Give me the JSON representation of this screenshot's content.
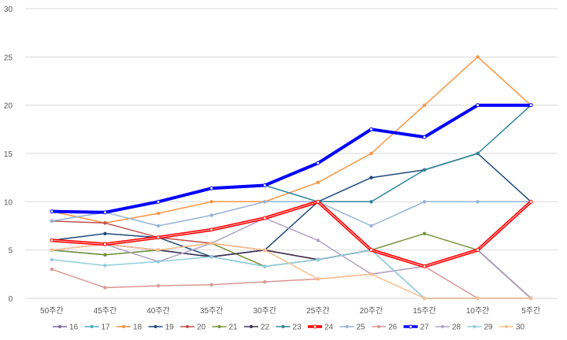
{
  "chart_data": {
    "type": "line",
    "title": "",
    "xlabel": "",
    "ylabel": "",
    "categories": [
      "50주간",
      "45주간",
      "40주간",
      "35주간",
      "30주간",
      "25주간",
      "20주간",
      "15주간",
      "10주간",
      "5주간"
    ],
    "ylim": [
      0,
      30
    ],
    "yticks": [
      0,
      5,
      10,
      15,
      20,
      25,
      30
    ],
    "grid": "horizontal",
    "legend_position": "bottom",
    "series": [
      {
        "name": "16",
        "color": "#8064a2",
        "values": [
          5,
          5.6,
          5,
          4.3,
          5,
          4,
          5,
          3.3,
          5,
          0
        ]
      },
      {
        "name": "17",
        "color": "#4bacc6",
        "values": [
          5,
          4.5,
          5,
          4.3,
          3.3,
          4,
          5,
          0,
          0,
          0
        ]
      },
      {
        "name": "18",
        "color": "#f79646",
        "values": [
          9,
          7.8,
          8.8,
          10,
          10,
          12,
          15,
          20,
          25,
          20
        ]
      },
      {
        "name": "19",
        "color": "#1f497d",
        "values": [
          6,
          6.7,
          6.3,
          4.3,
          5,
          10,
          12.5,
          13.3,
          15,
          10
        ]
      },
      {
        "name": "20",
        "color": "#c0504d",
        "values": [
          8,
          7.8,
          6.3,
          5.7,
          5,
          4,
          5,
          3.3,
          5,
          0
        ]
      },
      {
        "name": "21",
        "color": "#77933c",
        "values": [
          5,
          4.5,
          5,
          5.7,
          3.3,
          4,
          5,
          6.7,
          5,
          0
        ]
      },
      {
        "name": "22",
        "color": "#403151",
        "values": [
          6,
          5.6,
          5,
          4.3,
          5,
          4,
          5,
          3.3,
          5,
          0
        ]
      },
      {
        "name": "23",
        "color": "#31859c",
        "values": [
          9,
          8.9,
          10,
          11.4,
          11.7,
          10,
          10,
          13.3,
          15,
          20
        ]
      },
      {
        "name": "24",
        "color": "#ff0000",
        "values": [
          6,
          5.6,
          6.3,
          7.1,
          8.3,
          10,
          5,
          3.3,
          5,
          10
        ],
        "emphasis": "thick-red"
      },
      {
        "name": "25",
        "color": "#95b3d7",
        "values": [
          8,
          8.9,
          7.5,
          8.6,
          10,
          10,
          7.5,
          10,
          10,
          10
        ]
      },
      {
        "name": "26",
        "color": "#d99694",
        "values": [
          3,
          1.1,
          1.3,
          1.4,
          1.7,
          2,
          2.5,
          3.3,
          0,
          0
        ]
      },
      {
        "name": "27",
        "color": "#0000ff",
        "values": [
          9,
          8.9,
          10,
          11.4,
          11.7,
          14,
          17.5,
          16.7,
          20,
          20
        ],
        "emphasis": "thick-blue"
      },
      {
        "name": "28",
        "color": "#b3a2c7",
        "values": [
          5,
          5.6,
          3.8,
          5.7,
          8.3,
          6,
          2.5,
          3.3,
          5,
          0
        ]
      },
      {
        "name": "29",
        "color": "#93cddd",
        "values": [
          4,
          3.4,
          3.8,
          4.3,
          3.3,
          4,
          5,
          0,
          0,
          0
        ]
      },
      {
        "name": "30",
        "color": "#fac090",
        "values": [
          5,
          5.6,
          5,
          5.7,
          5,
          2,
          2.5,
          0,
          0,
          0
        ]
      }
    ]
  }
}
